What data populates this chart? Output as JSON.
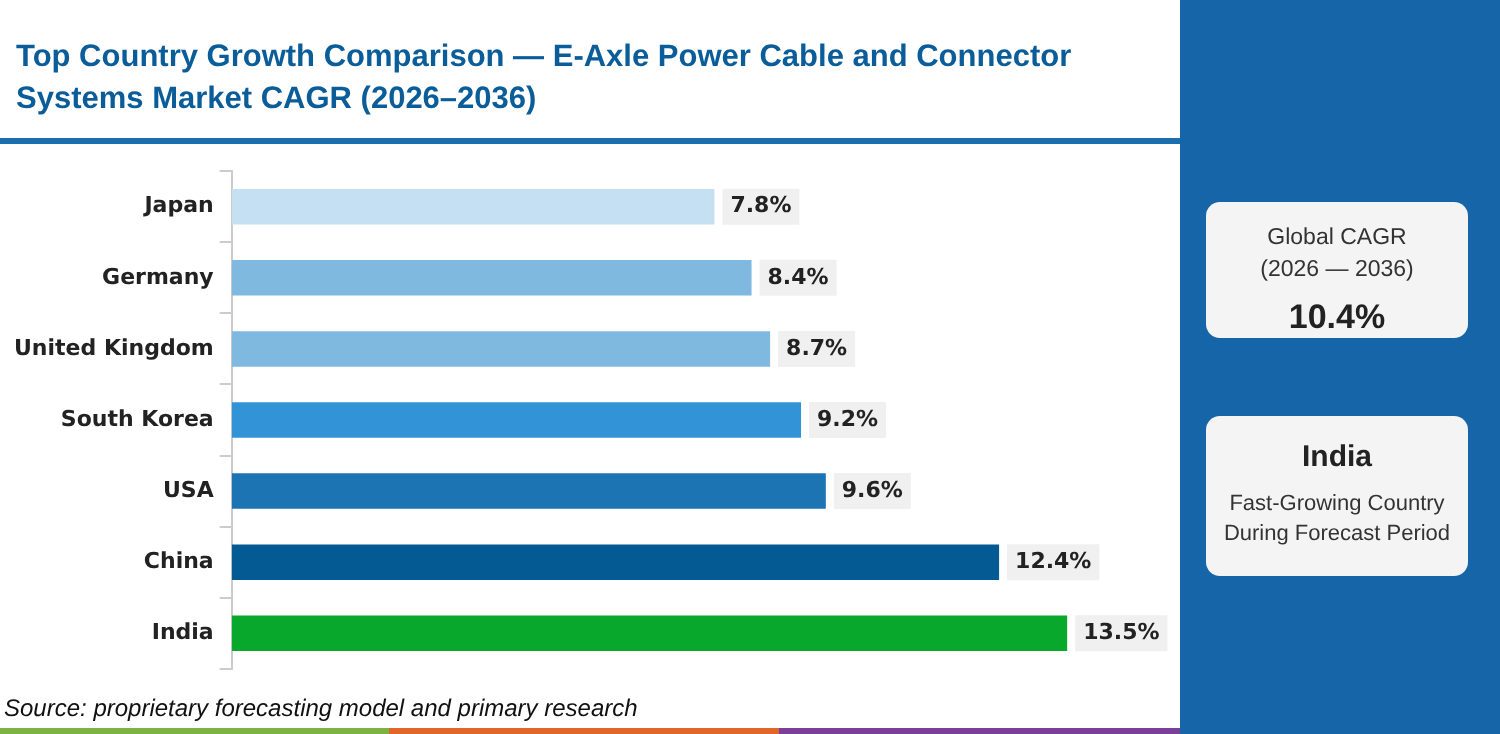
{
  "chart_data": {
    "type": "bar",
    "orientation": "horizontal",
    "title": "Top Country Growth Comparison — E-Axle Power Cable and Connector Systems Market CAGR (2026–2036)",
    "categories": [
      "Japan",
      "Germany",
      "United Kingdom",
      "South Korea",
      "USA",
      "China",
      "India"
    ],
    "values": [
      7.8,
      8.4,
      8.7,
      9.2,
      9.6,
      12.4,
      13.5
    ],
    "value_labels": [
      "7.8%",
      "8.4%",
      "8.7%",
      "9.2%",
      "9.6%",
      "12.4%",
      "13.5%"
    ],
    "colors": [
      "#c4e0f2",
      "#7fb9e0",
      "#7fb9e0",
      "#3293d6",
      "#1c74b2",
      "#045a92",
      "#08a82c"
    ],
    "xlim": [
      0,
      15
    ],
    "tick_labels": "y",
    "legend": false,
    "annotations": [
      "Source: proprietary forecasting model and primary research",
      "Global CAGR (2026 — 2036)",
      "10.4%",
      "India",
      "Fast-Growing Country During Forecast Period"
    ]
  }
}
